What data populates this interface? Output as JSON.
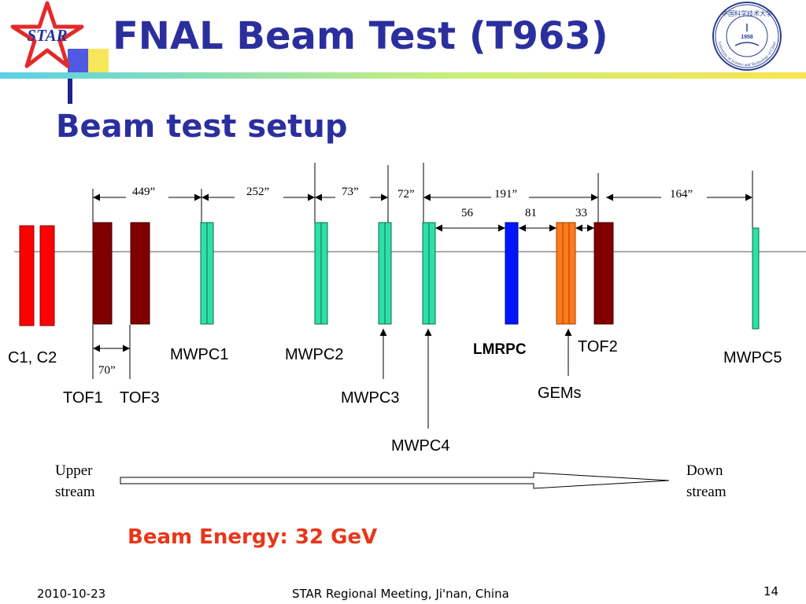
{
  "slide": {
    "title": "FNAL Beam Test (T963)",
    "subtitle": "Beam test setup",
    "beam_energy": "Beam Energy: 32 GeV"
  },
  "logos": {
    "star_text": "STAR",
    "university_seal_text": "University of Science and Technology of China",
    "university_seal_year": "1958"
  },
  "detectors": {
    "c1c2": "C1, C2",
    "tof1": "TOF1",
    "tof3": "TOF3",
    "mwpc1": "MWPC1",
    "mwpc2": "MWPC2",
    "mwpc3": "MWPC3",
    "mwpc4": "MWPC4",
    "lmrpc": "LMRPC",
    "gems": "GEMs",
    "tof2": "TOF2",
    "mwpc5": "MWPC5"
  },
  "distances": {
    "d1": "449”",
    "d2": "252”",
    "d3": "73”",
    "d4": "72”",
    "d5": "191”",
    "d6": "164”",
    "d7": "56",
    "d8": "81",
    "d9": "33",
    "d10": "70”"
  },
  "direction": {
    "upstream_line1": "Upper",
    "upstream_line2": "stream",
    "downstream_line1": "Down",
    "downstream_line2": "stream"
  },
  "footer": {
    "date": "2010-10-23",
    "meeting": "STAR Regional Meeting, Ji'nan, China",
    "page": "14"
  },
  "colors": {
    "title": "#2b2f9e",
    "counter_red": "#ff0000",
    "tof_darkred": "#800000",
    "mwpc_teal": "#2ee0a8",
    "lmrpc_blue": "#0015ff",
    "gem_orange": "#ff7a1a",
    "energy": "#e8361a"
  }
}
